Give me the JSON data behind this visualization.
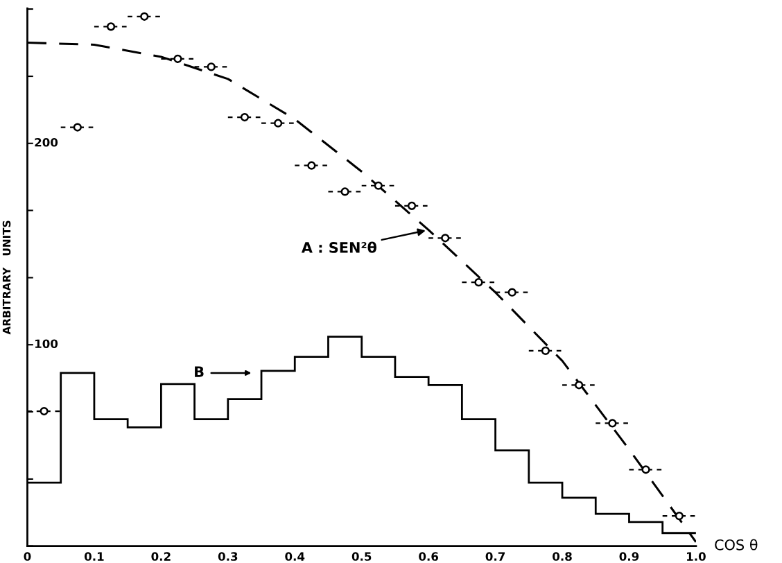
{
  "chart_data": {
    "type": "scatter",
    "xlabel": "COS θ",
    "ylabel": "ARBITRARY   UNITS",
    "xlim": [
      0,
      1
    ],
    "xticks": [
      0,
      0.1,
      0.2,
      0.3,
      0.4,
      0.5,
      0.6,
      0.7,
      0.8,
      0.9,
      {
        "value": 1,
        "label": "1.0"
      }
    ],
    "ylim": [
      0,
      267
    ],
    "yticks": [
      {
        "value": 0,
        "label": null
      },
      {
        "value": 33.3,
        "label": null
      },
      {
        "value": 66.7,
        "label": null
      },
      100,
      {
        "value": 133.3,
        "label": null
      },
      {
        "value": 166.7,
        "label": null
      },
      200,
      {
        "value": 233.3,
        "label": null
      },
      {
        "value": 266.7,
        "label": null
      }
    ],
    "grid": false,
    "legend": false,
    "series": [
      {
        "color": "#000000",
        "marker": "circle",
        "x": [
          0.025,
          0.075,
          0.125,
          0.175,
          0.225,
          0.275,
          0.325,
          0.375,
          0.425,
          0.475,
          0.525,
          0.575,
          0.625,
          0.675,
          0.725,
          0.775,
          0.825,
          0.875,
          0.925,
          0.975
        ],
        "values": [
          67,
          208,
          258,
          263,
          242,
          238,
          213,
          210,
          189,
          176,
          179,
          169,
          153,
          131,
          126,
          97,
          80,
          61,
          38,
          15
        ],
        "xerrors": [
          0.025,
          0.025,
          0.025,
          0.025,
          0.025,
          0.025,
          0.025,
          0.025,
          0.025,
          0.025,
          0.025,
          0.025,
          0.025,
          0.025,
          0.025,
          0.025,
          0.025,
          0.025,
          0.025,
          0.025
        ]
      },
      {
        "type": "line",
        "color": "#000000",
        "line_style": "dashed",
        "x": [
          0,
          0.1,
          0.2,
          0.3,
          0.4,
          0.5,
          0.6,
          0.7,
          0.8,
          0.9,
          1.0
        ],
        "values": [
          250,
          249,
          243,
          232,
          212,
          186,
          157,
          126,
          92,
          48,
          2
        ]
      },
      {
        "type": "histogram",
        "color": "#000000",
        "bins": [
          0,
          0.05,
          0.1,
          0.15,
          0.2,
          0.25,
          0.3,
          0.35,
          0.4,
          0.45,
          0.5,
          0.55,
          0.6,
          0.65,
          0.7,
          0.75,
          0.8,
          0.85,
          0.9,
          0.95,
          1.0
        ],
        "values": [
          31.5,
          86,
          63,
          59,
          80.5,
          63,
          73,
          87,
          94,
          104,
          94,
          84,
          80,
          63,
          47.5,
          31.5,
          24,
          16,
          12,
          6.5
        ]
      }
    ],
    "annotations": [
      {
        "text": "A : SEN²θ",
        "x": 0.6,
        "y": 157
      },
      "B"
    ]
  }
}
